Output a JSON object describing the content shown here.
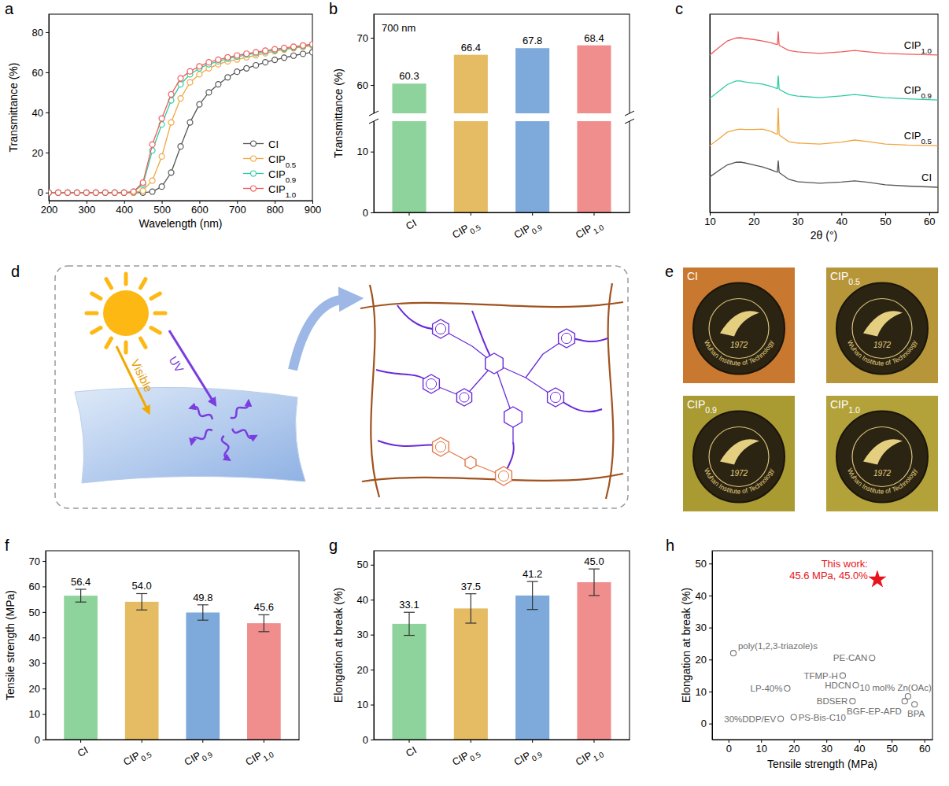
{
  "chart_data": [
    {
      "panel": "a",
      "type": "line",
      "xlabel": "Wavelength (nm)",
      "ylabel": "Transmittance (%)",
      "x": [
        200,
        225,
        250,
        275,
        300,
        325,
        350,
        375,
        400,
        425,
        450,
        475,
        500,
        525,
        550,
        575,
        600,
        625,
        650,
        675,
        700,
        725,
        750,
        775,
        800,
        825,
        850,
        875,
        900
      ],
      "series": [
        {
          "name": "CI",
          "color": "#555555",
          "marker": "circle",
          "values": [
            0,
            0,
            0,
            0,
            0,
            0,
            0,
            0,
            0,
            0,
            0,
            0.5,
            3,
            10,
            23,
            35,
            44,
            50,
            54,
            57.5,
            60.3,
            62,
            63.5,
            65,
            66.2,
            67.3,
            68.3,
            69.2,
            70
          ]
        },
        {
          "name": "CIP0.5",
          "color": "#f0a640",
          "marker": "circle",
          "values": [
            0,
            0,
            0,
            0,
            0,
            0,
            0,
            0,
            0,
            0,
            1,
            6,
            18,
            35,
            47,
            55,
            59,
            62,
            64,
            65.5,
            66.4,
            67.5,
            68.5,
            69.5,
            70.5,
            71.3,
            72,
            72.7,
            73.3
          ]
        },
        {
          "name": "CIP0.9",
          "color": "#2fcba3",
          "marker": "circle",
          "values": [
            0,
            0,
            0,
            0,
            0,
            0,
            0,
            0,
            0,
            0.5,
            4,
            21,
            34,
            46,
            54,
            59,
            62,
            64,
            65.5,
            66.8,
            67.8,
            68.7,
            69.5,
            70.3,
            71,
            71.7,
            72.4,
            73,
            73.7
          ]
        },
        {
          "name": "CIP1.0",
          "color": "#ef5b5b",
          "marker": "circle",
          "values": [
            0,
            0,
            0,
            0,
            0,
            0,
            0,
            0,
            0,
            0.5,
            5,
            24,
            37,
            49,
            57,
            60.5,
            63,
            65,
            66.3,
            67.5,
            68.4,
            69.3,
            70,
            70.8,
            71.5,
            72.2,
            72.8,
            73.4,
            74
          ]
        }
      ],
      "xlim": [
        200,
        900
      ],
      "xticks": [
        200,
        300,
        400,
        500,
        600,
        700,
        800,
        900
      ],
      "ylim": [
        -4,
        89
      ],
      "yticks": [
        0,
        20,
        40,
        60,
        80
      ],
      "legend": "lower right"
    },
    {
      "panel": "b",
      "type": "bar",
      "ylabel": "Transmittance (%)",
      "annotation": "700 nm",
      "categories": [
        "CI",
        "CIP0.5",
        "CIP0.9",
        "CIP1.0"
      ],
      "values": [
        60.3,
        66.4,
        67.8,
        68.4
      ],
      "colors": [
        "#8ed39c",
        "#e5bc63",
        "#7eaadb",
        "#f08d8d"
      ],
      "ylim": [
        0,
        75
      ],
      "y_break": [
        15,
        54
      ],
      "yticks": [
        0,
        10,
        60,
        70
      ],
      "data_labels": true
    },
    {
      "panel": "c",
      "type": "line",
      "xlabel": "2θ (°)",
      "x": [
        10,
        12,
        14,
        16,
        17,
        18,
        20,
        22,
        24,
        25,
        25.4,
        25.6,
        25.8,
        26,
        28,
        30,
        35,
        40,
        43,
        46,
        50,
        55,
        62
      ],
      "series": [
        {
          "name": "CI",
          "color": "#555555",
          "values": [
            17.9,
            21,
            24,
            25.3,
            25.4,
            25,
            24,
            23,
            21.5,
            20.6,
            20.4,
            26.2,
            20.2,
            19.8,
            16.7,
            15.5,
            14.7,
            15.3,
            15.9,
            15.2,
            13.9,
            13.3,
            12.7
          ]
        },
        {
          "name": "CIP0.5",
          "color": "#f0a640",
          "values": [
            33.7,
            37,
            40.5,
            41.7,
            42,
            41.8,
            41.8,
            42,
            40.8,
            39.7,
            39.5,
            52.8,
            39.3,
            38.8,
            35.7,
            35,
            34.5,
            35.5,
            36.5,
            35.8,
            34.5,
            34,
            33.7
          ]
        },
        {
          "name": "CIP0.9",
          "color": "#2fcba3",
          "values": [
            57.5,
            61,
            64.5,
            66.3,
            66.3,
            65.8,
            65.2,
            64.7,
            63.5,
            62.7,
            62.5,
            69,
            62.3,
            61.8,
            59.5,
            58.7,
            57.9,
            58.8,
            59.5,
            58.8,
            57.9,
            57.3,
            56.7
          ]
        },
        {
          "name": "CIP1.0",
          "color": "#ef5b5b",
          "values": [
            79.4,
            83,
            86.5,
            88,
            88.1,
            87.8,
            87.2,
            86.5,
            85.6,
            84.9,
            84.7,
            91.3,
            84.5,
            84,
            81.7,
            81,
            80.2,
            81,
            81.7,
            81,
            80.2,
            79.8,
            79.4
          ]
        }
      ],
      "xlim": [
        10,
        62
      ],
      "xticks": [
        10,
        20,
        30,
        40,
        50,
        60
      ],
      "ylim": [
        0,
        100
      ],
      "yticks": [],
      "tick_labels": "x"
    },
    {
      "panel": "f",
      "type": "bar",
      "ylabel": "Tensile strength (MPa)",
      "categories": [
        "CI",
        "CIP0.5",
        "CIP0.9",
        "CIP1.0"
      ],
      "values": [
        56.4,
        54,
        49.8,
        45.6
      ],
      "value_labels": [
        "56.4",
        "54.0",
        "49.8",
        "45.6"
      ],
      "errors": [
        2.5,
        3.2,
        3.0,
        3.3
      ],
      "colors": [
        "#8ed39c",
        "#e5bc63",
        "#7eaadb",
        "#f08d8d"
      ],
      "ylim": [
        0,
        74
      ],
      "yticks": [
        0,
        10,
        20,
        30,
        40,
        50,
        60,
        70
      ],
      "data_labels": true
    },
    {
      "panel": "g",
      "type": "bar",
      "ylabel": "Elongation at break (%)",
      "categories": [
        "CI",
        "CIP0.5",
        "CIP0.9",
        "CIP1.0"
      ],
      "values": [
        33.1,
        37.5,
        41.2,
        45
      ],
      "value_labels": [
        "33.1",
        "37.5",
        "41.2",
        "45.0"
      ],
      "errors": [
        3.3,
        4.2,
        4.0,
        3.8
      ],
      "colors": [
        "#8ed39c",
        "#e5bc63",
        "#7eaadb",
        "#f08d8d"
      ],
      "ylim": [
        0,
        54
      ],
      "yticks": [
        0,
        10,
        20,
        30,
        40,
        50
      ],
      "data_labels": true
    },
    {
      "panel": "h",
      "type": "scatter",
      "xlabel": "Tensile strength (MPa)",
      "ylabel": "Elongation at break (%)",
      "point_labels": [
        "poly(1,2,3-triazole)s",
        "LP-40%",
        "30%DDP/EV",
        "PS-Bis-C10",
        "PE-CAN",
        "TFMP-H",
        "HDCN",
        "BDSER",
        "10 mol% Zn(OAc)",
        "BGF-EP-AFD",
        "BPA"
      ],
      "x": [
        1.5,
        18,
        16,
        20,
        44,
        35,
        39,
        38,
        55,
        54,
        57
      ],
      "values": [
        22,
        11,
        1.5,
        2,
        20.5,
        15,
        12,
        7,
        8.5,
        7,
        6
      ],
      "color": "#777777",
      "marker": "circle",
      "highlight": {
        "x": 45.6,
        "y": 45,
        "labels": [
          "This work:",
          "45.6 MPa, 45.0%"
        ],
        "color": "#e8141c",
        "marker": "star"
      },
      "xlim": [
        -5,
        62.5
      ],
      "xticks": [
        0,
        10,
        20,
        30,
        40,
        50,
        60
      ],
      "ylim": [
        -5,
        54
      ],
      "yticks": [
        0,
        10,
        20,
        30,
        40,
        50
      ]
    }
  ],
  "schematic": {
    "panel": "d",
    "labels": {
      "visible": "Visible",
      "uv": "UV"
    }
  },
  "photos": {
    "panel": "e",
    "logo_text": "Wuhan Institute of Technology",
    "logo_year": "1972",
    "items": [
      {
        "label": "CI",
        "color": "#c9782f"
      },
      {
        "label": "CIP0.5",
        "color": "#b7963a"
      },
      {
        "label": "CIP0.9",
        "color": "#a99a32"
      },
      {
        "label": "CIP1.0",
        "color": "#b3a23a"
      }
    ]
  }
}
